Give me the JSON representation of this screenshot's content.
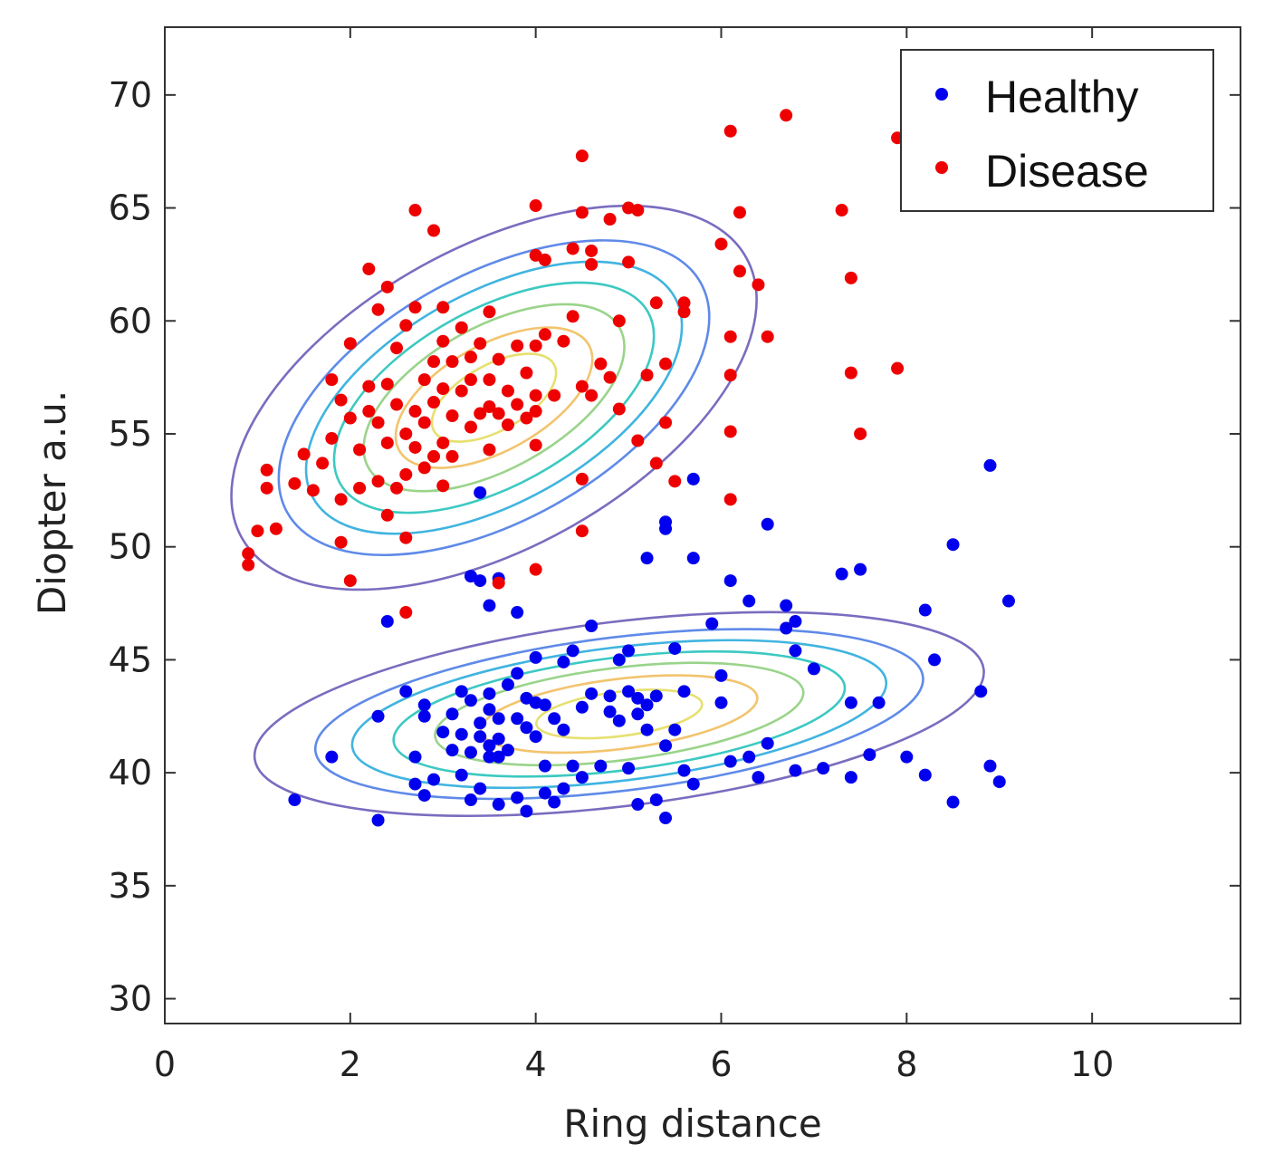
{
  "chart_data": {
    "type": "scatter",
    "title": "",
    "xlabel": "Ring distance",
    "ylabel": "Diopter a.u.",
    "xlim": [
      0,
      11.6
    ],
    "ylim": [
      28.9,
      73
    ],
    "xticks": [
      0,
      2,
      4,
      6,
      8,
      10
    ],
    "yticks": [
      30,
      35,
      40,
      45,
      50,
      55,
      60,
      65,
      70
    ],
    "grid": false,
    "legend_position": "top-right",
    "series": [
      {
        "name": "Healthy",
        "color": "#0000ee",
        "points": [
          [
            1.4,
            38.8
          ],
          [
            1.8,
            40.7
          ],
          [
            2.3,
            42.5
          ],
          [
            2.3,
            37.9
          ],
          [
            2.4,
            46.7
          ],
          [
            2.6,
            43.6
          ],
          [
            2.7,
            40.7
          ],
          [
            2.7,
            39.5
          ],
          [
            2.8,
            39.0
          ],
          [
            2.8,
            42.5
          ],
          [
            2.8,
            43.0
          ],
          [
            2.9,
            39.7
          ],
          [
            3.0,
            41.8
          ],
          [
            3.1,
            42.6
          ],
          [
            3.1,
            41.0
          ],
          [
            3.2,
            43.6
          ],
          [
            3.2,
            39.9
          ],
          [
            3.2,
            41.7
          ],
          [
            3.3,
            38.8
          ],
          [
            3.3,
            40.9
          ],
          [
            3.3,
            43.2
          ],
          [
            3.4,
            39.3
          ],
          [
            3.4,
            42.2
          ],
          [
            3.4,
            41.6
          ],
          [
            3.4,
            52.4
          ],
          [
            3.4,
            48.5
          ],
          [
            3.3,
            48.7
          ],
          [
            3.5,
            41.2
          ],
          [
            3.5,
            40.7
          ],
          [
            3.5,
            42.8
          ],
          [
            3.5,
            43.5
          ],
          [
            3.5,
            47.4
          ],
          [
            3.6,
            42.4
          ],
          [
            3.6,
            41.5
          ],
          [
            3.6,
            38.6
          ],
          [
            3.6,
            40.7
          ],
          [
            3.6,
            48.6
          ],
          [
            3.7,
            43.9
          ],
          [
            3.7,
            41.0
          ],
          [
            3.8,
            42.4
          ],
          [
            3.8,
            38.9
          ],
          [
            3.8,
            44.4
          ],
          [
            3.8,
            47.1
          ],
          [
            3.9,
            38.3
          ],
          [
            3.9,
            42.0
          ],
          [
            3.9,
            43.3
          ],
          [
            4.0,
            45.1
          ],
          [
            4.0,
            41.6
          ],
          [
            4.0,
            43.1
          ],
          [
            4.1,
            40.3
          ],
          [
            4.1,
            43.0
          ],
          [
            4.1,
            39.1
          ],
          [
            4.2,
            38.7
          ],
          [
            4.2,
            42.4
          ],
          [
            4.3,
            44.9
          ],
          [
            4.3,
            41.9
          ],
          [
            4.3,
            39.3
          ],
          [
            4.4,
            40.3
          ],
          [
            4.4,
            45.4
          ],
          [
            4.5,
            42.9
          ],
          [
            4.5,
            39.8
          ],
          [
            4.6,
            43.5
          ],
          [
            4.6,
            46.5
          ],
          [
            4.7,
            40.3
          ],
          [
            4.8,
            42.7
          ],
          [
            4.8,
            43.4
          ],
          [
            4.9,
            45.0
          ],
          [
            4.9,
            42.3
          ],
          [
            5.0,
            40.2
          ],
          [
            5.0,
            43.6
          ],
          [
            5.0,
            45.4
          ],
          [
            5.1,
            42.6
          ],
          [
            5.1,
            43.3
          ],
          [
            5.1,
            38.6
          ],
          [
            5.2,
            41.9
          ],
          [
            5.2,
            43.0
          ],
          [
            5.2,
            49.5
          ],
          [
            5.3,
            38.8
          ],
          [
            5.3,
            43.4
          ],
          [
            5.4,
            50.8
          ],
          [
            5.4,
            51.1
          ],
          [
            5.4,
            41.2
          ],
          [
            5.4,
            38.0
          ],
          [
            5.5,
            45.5
          ],
          [
            5.5,
            41.9
          ],
          [
            5.6,
            43.6
          ],
          [
            5.6,
            40.1
          ],
          [
            5.7,
            53.0
          ],
          [
            5.7,
            49.5
          ],
          [
            5.7,
            39.5
          ],
          [
            5.9,
            46.6
          ],
          [
            6.0,
            43.1
          ],
          [
            6.0,
            44.3
          ],
          [
            6.1,
            48.5
          ],
          [
            6.1,
            40.5
          ],
          [
            6.3,
            47.6
          ],
          [
            6.3,
            40.7
          ],
          [
            6.4,
            39.8
          ],
          [
            6.5,
            51.0
          ],
          [
            6.5,
            41.3
          ],
          [
            6.7,
            47.4
          ],
          [
            6.7,
            46.4
          ],
          [
            6.8,
            46.7
          ],
          [
            6.8,
            45.4
          ],
          [
            6.8,
            40.1
          ],
          [
            7.0,
            44.6
          ],
          [
            7.1,
            40.2
          ],
          [
            7.3,
            48.8
          ],
          [
            7.5,
            49.0
          ],
          [
            7.4,
            43.1
          ],
          [
            7.4,
            39.8
          ],
          [
            7.6,
            40.8
          ],
          [
            7.7,
            43.1
          ],
          [
            8.0,
            40.7
          ],
          [
            8.2,
            39.9
          ],
          [
            8.2,
            47.2
          ],
          [
            8.3,
            45.0
          ],
          [
            8.5,
            38.7
          ],
          [
            8.5,
            50.1
          ],
          [
            8.8,
            43.6
          ],
          [
            8.9,
            53.6
          ],
          [
            8.9,
            40.3
          ],
          [
            9.0,
            39.6
          ],
          [
            9.1,
            47.6
          ]
        ]
      },
      {
        "name": "Disease",
        "color": "#ee0000",
        "points": [
          [
            0.9,
            49.2
          ],
          [
            0.9,
            49.7
          ],
          [
            1.0,
            50.7
          ],
          [
            1.1,
            52.6
          ],
          [
            1.1,
            53.4
          ],
          [
            1.2,
            50.8
          ],
          [
            1.4,
            52.8
          ],
          [
            1.5,
            54.1
          ],
          [
            1.6,
            52.5
          ],
          [
            1.7,
            53.7
          ],
          [
            1.8,
            57.4
          ],
          [
            1.8,
            54.8
          ],
          [
            1.9,
            56.5
          ],
          [
            1.9,
            52.1
          ],
          [
            1.9,
            50.2
          ],
          [
            2.0,
            48.5
          ],
          [
            2.0,
            59.0
          ],
          [
            2.0,
            55.7
          ],
          [
            2.1,
            54.3
          ],
          [
            2.1,
            52.6
          ],
          [
            2.2,
            62.3
          ],
          [
            2.2,
            56.0
          ],
          [
            2.2,
            57.1
          ],
          [
            2.3,
            60.5
          ],
          [
            2.3,
            55.5
          ],
          [
            2.3,
            52.9
          ],
          [
            2.4,
            51.4
          ],
          [
            2.4,
            54.6
          ],
          [
            2.4,
            57.2
          ],
          [
            2.4,
            61.5
          ],
          [
            2.5,
            58.8
          ],
          [
            2.5,
            56.3
          ],
          [
            2.5,
            52.6
          ],
          [
            2.6,
            55.0
          ],
          [
            2.6,
            53.2
          ],
          [
            2.6,
            59.8
          ],
          [
            2.6,
            50.4
          ],
          [
            2.6,
            47.1
          ],
          [
            2.7,
            54.4
          ],
          [
            2.7,
            56.0
          ],
          [
            2.7,
            60.6
          ],
          [
            2.7,
            64.9
          ],
          [
            2.8,
            57.4
          ],
          [
            2.8,
            53.5
          ],
          [
            2.8,
            55.5
          ],
          [
            2.9,
            56.4
          ],
          [
            2.9,
            54.0
          ],
          [
            2.9,
            58.2
          ],
          [
            2.9,
            64.0
          ],
          [
            3.0,
            59.1
          ],
          [
            3.0,
            54.6
          ],
          [
            3.0,
            57.0
          ],
          [
            3.0,
            60.6
          ],
          [
            3.0,
            52.7
          ],
          [
            3.1,
            55.8
          ],
          [
            3.1,
            58.2
          ],
          [
            3.1,
            54.0
          ],
          [
            3.2,
            56.9
          ],
          [
            3.2,
            59.7
          ],
          [
            3.3,
            58.4
          ],
          [
            3.3,
            55.3
          ],
          [
            3.3,
            57.4
          ],
          [
            3.4,
            55.9
          ],
          [
            3.4,
            59.0
          ],
          [
            3.5,
            54.3
          ],
          [
            3.5,
            57.4
          ],
          [
            3.5,
            56.2
          ],
          [
            3.5,
            60.4
          ],
          [
            3.6,
            58.3
          ],
          [
            3.6,
            55.9
          ],
          [
            3.6,
            48.4
          ],
          [
            3.7,
            56.9
          ],
          [
            3.7,
            55.4
          ],
          [
            3.8,
            58.9
          ],
          [
            3.8,
            56.3
          ],
          [
            3.9,
            57.7
          ],
          [
            3.9,
            55.7
          ],
          [
            4.0,
            56.0
          ],
          [
            4.0,
            56.7
          ],
          [
            4.0,
            58.9
          ],
          [
            4.0,
            62.9
          ],
          [
            4.0,
            65.1
          ],
          [
            4.0,
            54.5
          ],
          [
            4.0,
            49.0
          ],
          [
            4.1,
            59.4
          ],
          [
            4.1,
            62.7
          ],
          [
            4.2,
            56.7
          ],
          [
            4.3,
            59.1
          ],
          [
            4.4,
            60.2
          ],
          [
            4.4,
            63.2
          ],
          [
            4.5,
            64.8
          ],
          [
            4.5,
            67.3
          ],
          [
            4.5,
            57.1
          ],
          [
            4.5,
            53.0
          ],
          [
            4.5,
            50.7
          ],
          [
            4.6,
            56.7
          ],
          [
            4.6,
            62.5
          ],
          [
            4.6,
            63.1
          ],
          [
            4.7,
            58.1
          ],
          [
            4.8,
            57.5
          ],
          [
            4.8,
            64.5
          ],
          [
            4.9,
            56.1
          ],
          [
            4.9,
            60.0
          ],
          [
            5.0,
            62.6
          ],
          [
            5.0,
            65.0
          ],
          [
            5.1,
            64.9
          ],
          [
            5.1,
            54.7
          ],
          [
            5.2,
            57.6
          ],
          [
            5.3,
            60.8
          ],
          [
            5.3,
            53.7
          ],
          [
            5.4,
            58.1
          ],
          [
            5.4,
            55.5
          ],
          [
            5.5,
            52.9
          ],
          [
            5.6,
            60.8
          ],
          [
            5.6,
            60.4
          ],
          [
            6.0,
            63.4
          ],
          [
            6.1,
            57.6
          ],
          [
            6.1,
            59.3
          ],
          [
            6.1,
            55.1
          ],
          [
            6.1,
            68.4
          ],
          [
            6.2,
            62.2
          ],
          [
            6.2,
            64.8
          ],
          [
            6.4,
            61.6
          ],
          [
            6.5,
            59.3
          ],
          [
            6.1,
            52.1
          ],
          [
            6.7,
            69.1
          ],
          [
            7.3,
            64.9
          ],
          [
            7.4,
            61.9
          ],
          [
            7.4,
            57.7
          ],
          [
            7.5,
            55.0
          ],
          [
            7.9,
            68.1
          ],
          [
            7.9,
            57.9
          ]
        ]
      }
    ],
    "contours": [
      {
        "cx": 3.55,
        "cy": 56.6,
        "sx": 0.74,
        "sy": 1.45,
        "deg": 29,
        "color": "#e6e070"
      },
      {
        "cx": 3.55,
        "cy": 56.6,
        "sx": 1.17,
        "sy": 2.35,
        "deg": 29,
        "color": "#f2c46e"
      },
      {
        "cx": 3.55,
        "cy": 56.6,
        "sx": 1.55,
        "sy": 3.15,
        "deg": 29,
        "color": "#9ad48a"
      },
      {
        "cx": 3.55,
        "cy": 56.6,
        "sx": 1.9,
        "sy": 3.9,
        "deg": 29,
        "color": "#3cc9c2"
      },
      {
        "cx": 3.55,
        "cy": 56.6,
        "sx": 2.23,
        "sy": 4.65,
        "deg": 29,
        "color": "#40b4e0"
      },
      {
        "cx": 3.55,
        "cy": 56.6,
        "sx": 2.55,
        "sy": 5.45,
        "deg": 29,
        "color": "#5f8ae8"
      },
      {
        "cx": 4.9,
        "cy": 42.6,
        "sx": 0.9,
        "sy": 0.98,
        "deg": 7,
        "color": "#e6e070"
      },
      {
        "cx": 4.9,
        "cy": 42.6,
        "sx": 1.5,
        "sy": 1.55,
        "deg": 7,
        "color": "#f2c46e"
      },
      {
        "cx": 4.9,
        "cy": 42.6,
        "sx": 2.0,
        "sy": 2.05,
        "deg": 7,
        "color": "#9ad48a"
      },
      {
        "cx": 4.9,
        "cy": 42.6,
        "sx": 2.45,
        "sy": 2.5,
        "deg": 7,
        "color": "#3cc9c2"
      },
      {
        "cx": 4.9,
        "cy": 42.6,
        "sx": 2.9,
        "sy": 2.95,
        "deg": 7,
        "color": "#40b4e0"
      },
      {
        "cx": 4.9,
        "cy": 42.6,
        "sx": 3.3,
        "sy": 3.4,
        "deg": 7,
        "color": "#5f8ae8"
      }
    ],
    "outer_contour_color": "#7a6cbf"
  }
}
